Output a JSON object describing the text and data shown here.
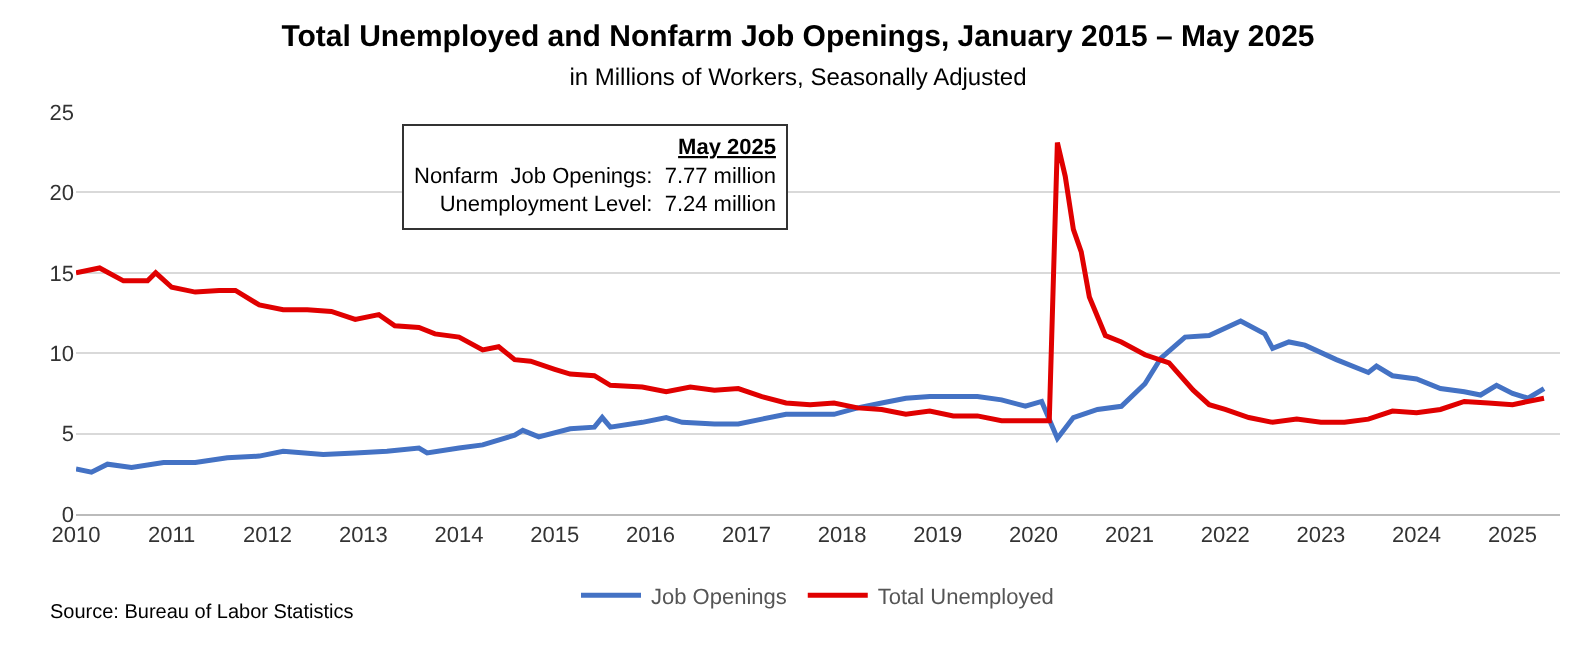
{
  "chart_data": {
    "type": "line",
    "title": "Total Unemployed and Nonfarm Job Openings, January 2015 – May 2025",
    "subtitle": "in Millions of Workers, Seasonally Adjusted",
    "annotations": [
      "May 2025\nNonfarm  Job Openings:  7.77 million\nUnemployment Level:  7.24 million",
      "Source: Bureau of Labor Statistics"
    ],
    "xlim": [
      "2010-01",
      "2025-07"
    ],
    "xticks": [
      "2010",
      "2011",
      "2012",
      "2013",
      "2014",
      "2015",
      "2016",
      "2017",
      "2018",
      "2019",
      "2020",
      "2021",
      "2022",
      "2023",
      "2024",
      "2025"
    ],
    "ylim": [
      0,
      25
    ],
    "yticks": [
      0,
      5,
      10,
      15,
      20,
      25
    ],
    "grid": "y",
    "legend": "bottom",
    "marker": "none",
    "line_style": "solid",
    "series": [
      {
        "name": "Job Openings",
        "color": "#4472c4",
        "x": [
          "2010-01",
          "2010-03",
          "2010-05",
          "2010-08",
          "2010-12",
          "2011-04",
          "2011-08",
          "2011-12",
          "2012-03",
          "2012-08",
          "2012-12",
          "2013-04",
          "2013-08",
          "2013-09",
          "2014-01",
          "2014-04",
          "2014-08",
          "2014-09",
          "2014-11",
          "2015-03",
          "2015-06",
          "2015-07",
          "2015-08",
          "2015-12",
          "2016-03",
          "2016-05",
          "2016-09",
          "2016-12",
          "2017-03",
          "2017-06",
          "2017-09",
          "2017-12",
          "2018-03",
          "2018-06",
          "2018-09",
          "2018-12",
          "2019-03",
          "2019-06",
          "2019-09",
          "2019-12",
          "2020-02",
          "2020-04",
          "2020-06",
          "2020-09",
          "2020-12",
          "2021-03",
          "2021-05",
          "2021-08",
          "2021-11",
          "2022-03",
          "2022-06",
          "2022-07",
          "2022-09",
          "2022-11",
          "2023-03",
          "2023-07",
          "2023-08",
          "2023-10",
          "2024-01",
          "2024-04",
          "2024-07",
          "2024-09",
          "2024-11",
          "2025-01",
          "2025-03",
          "2025-05"
        ],
        "values": [
          2.8,
          2.6,
          3.1,
          2.9,
          3.2,
          3.2,
          3.5,
          3.6,
          3.9,
          3.7,
          3.8,
          3.9,
          4.1,
          3.8,
          4.1,
          4.3,
          4.9,
          5.2,
          4.8,
          5.3,
          5.4,
          6.0,
          5.4,
          5.7,
          6.0,
          5.7,
          5.6,
          5.6,
          5.9,
          6.2,
          6.2,
          6.2,
          6.6,
          6.9,
          7.2,
          7.3,
          7.3,
          7.3,
          7.1,
          6.7,
          7.0,
          4.7,
          6.0,
          6.5,
          6.7,
          8.1,
          9.7,
          11.0,
          11.1,
          12.0,
          11.2,
          10.3,
          10.7,
          10.5,
          9.6,
          8.8,
          9.2,
          8.6,
          8.4,
          7.8,
          7.6,
          7.4,
          8.0,
          7.5,
          7.2,
          7.8
        ]
      },
      {
        "name": "Total Unemployed",
        "color": "#e00000",
        "x": [
          "2010-01",
          "2010-04",
          "2010-07",
          "2010-10",
          "2010-11",
          "2011-01",
          "2011-04",
          "2011-07",
          "2011-09",
          "2011-12",
          "2012-03",
          "2012-06",
          "2012-09",
          "2012-12",
          "2013-03",
          "2013-05",
          "2013-08",
          "2013-10",
          "2014-01",
          "2014-04",
          "2014-06",
          "2014-08",
          "2014-10",
          "2015-01",
          "2015-03",
          "2015-06",
          "2015-08",
          "2015-12",
          "2016-03",
          "2016-06",
          "2016-09",
          "2016-12",
          "2017-03",
          "2017-06",
          "2017-09",
          "2017-12",
          "2018-03",
          "2018-06",
          "2018-09",
          "2018-12",
          "2019-03",
          "2019-06",
          "2019-09",
          "2019-12",
          "2020-03",
          "2020-04",
          "2020-05",
          "2020-06",
          "2020-07",
          "2020-08",
          "2020-10",
          "2020-12",
          "2021-03",
          "2021-06",
          "2021-09",
          "2021-11",
          "2022-01",
          "2022-04",
          "2022-07",
          "2022-10",
          "2023-01",
          "2023-04",
          "2023-07",
          "2023-10",
          "2024-01",
          "2024-04",
          "2024-07",
          "2024-10",
          "2025-01",
          "2025-05"
        ],
        "values": [
          15.0,
          15.3,
          14.5,
          14.5,
          15.0,
          14.1,
          13.8,
          13.9,
          13.9,
          13.0,
          12.7,
          12.7,
          12.6,
          12.1,
          12.4,
          11.7,
          11.6,
          11.2,
          11.0,
          10.2,
          10.4,
          9.6,
          9.5,
          9.0,
          8.7,
          8.6,
          8.0,
          7.9,
          7.6,
          7.9,
          7.7,
          7.8,
          7.3,
          6.9,
          6.8,
          6.9,
          6.6,
          6.5,
          6.2,
          6.4,
          6.1,
          6.1,
          5.8,
          5.8,
          5.8,
          23.1,
          21.0,
          17.7,
          16.3,
          13.5,
          11.1,
          10.7,
          9.9,
          9.4,
          7.7,
          6.8,
          6.5,
          6.0,
          5.7,
          5.9,
          5.7,
          5.7,
          5.9,
          6.4,
          6.3,
          6.5,
          7.0,
          6.9,
          6.8,
          7.2
        ]
      }
    ]
  }
}
